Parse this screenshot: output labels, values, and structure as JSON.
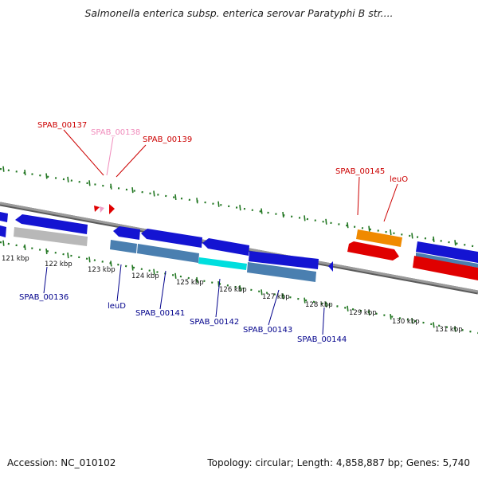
{
  "title": "Salmonella enterica subsp. enterica serovar Paratyphi B str....",
  "footer": {
    "accession": "Accession: NC_010102",
    "summary": "Topology: circular; Length: 4,858,887 bp; Genes: 5,740"
  },
  "colors": {
    "backbone": "#8a8a8a",
    "gene_blue": "#1414d2",
    "gene_steel": "#4a7fb0",
    "gene_grey": "#b8b8b8",
    "gene_cyan": "#00dede",
    "gene_red": "#e00000",
    "gene_pink": "#f0a0c8",
    "gene_orange": "#f08a00",
    "label_red": "#cc0000",
    "label_pink": "#f08cbc",
    "label_blue": "#00008b",
    "tick_green": "#227722"
  },
  "axis_ticks": [
    {
      "position_kbp": 121,
      "label": "121 kbp"
    },
    {
      "position_kbp": 122,
      "label": "122 kbp"
    },
    {
      "position_kbp": 123,
      "label": "123 kbp"
    },
    {
      "position_kbp": 124,
      "label": "124 kbp"
    },
    {
      "position_kbp": 125,
      "label": "125 kbp"
    },
    {
      "position_kbp": 126,
      "label": "126 kbp"
    },
    {
      "position_kbp": 127,
      "label": "127 kbp"
    },
    {
      "position_kbp": 128,
      "label": "128 kbp"
    },
    {
      "position_kbp": 129,
      "label": "129 kbp"
    },
    {
      "position_kbp": 130,
      "label": "130 kbp"
    },
    {
      "position_kbp": 131,
      "label": "131 kbp"
    }
  ],
  "gene_labels_top": [
    {
      "name": "SPAB_00137",
      "color": "label_red"
    },
    {
      "name": "SPAB_00138",
      "color": "label_pink"
    },
    {
      "name": "SPAB_00139",
      "color": "label_red"
    },
    {
      "name": "SPAB_00145",
      "color": "label_red"
    },
    {
      "name": "leuO",
      "color": "label_red"
    }
  ],
  "gene_labels_bottom": [
    {
      "name": "SPAB_00136"
    },
    {
      "name": "leuD"
    },
    {
      "name": "SPAB_00141"
    },
    {
      "name": "SPAB_00142"
    },
    {
      "name": "SPAB_00143"
    },
    {
      "name": "SPAB_00144"
    }
  ]
}
